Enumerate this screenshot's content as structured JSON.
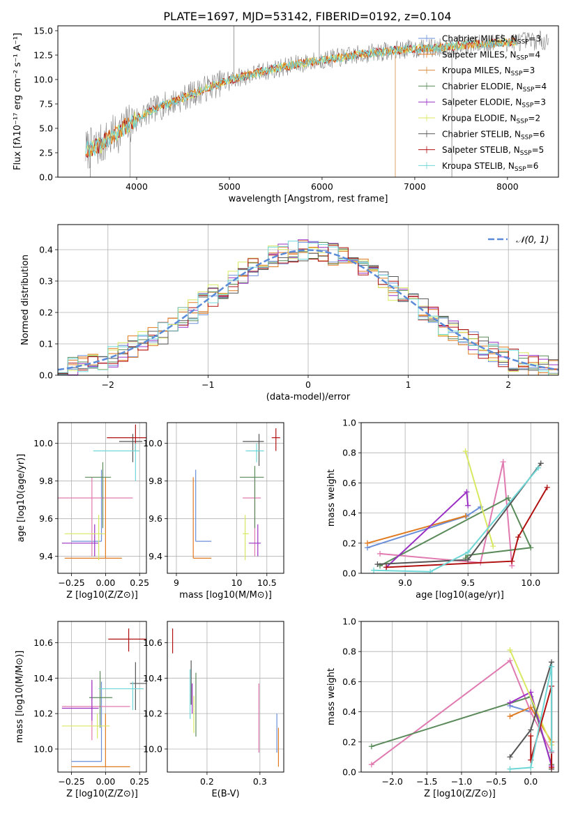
{
  "figure_title": "PLATE=1697, MJD=53142, FIBERID=0192, z=0.104",
  "colors": {
    "chabrier_miles": "#6a8fd8",
    "salpeter_miles": "#e07a1f",
    "kroupa_miles": "#d4893a",
    "chabrier_elodie": "#5a8a5a",
    "salpeter_elodie": "#9b30c4",
    "kroupa_elodie": "#d8e860",
    "chabrier_stelib": "#555555",
    "salpeter_stelib": "#b01010",
    "kroupa_stelib": "#6fd6d6",
    "pink": "#e07ab0",
    "normal_curve": "#5a8ad8"
  },
  "chart_data": [
    {
      "type": "line",
      "title": "PLATE=1697, MJD=53142, FIBERID=0192, z=0.104",
      "xlabel": "wavelength [Angstrom, rest frame]",
      "ylabel": "Flux [fλ10⁻¹⁷ erg cm⁻² s⁻¹ A⁻¹]",
      "xlim": [
        3150,
        8550
      ],
      "ylim": [
        0,
        15.5
      ],
      "xticks": [
        4000,
        5000,
        6000,
        7000,
        8000
      ],
      "yticks": [
        0.0,
        2.5,
        5.0,
        7.5,
        10.0,
        12.5,
        15.0
      ],
      "grid": false,
      "legend": "upper-right",
      "continuum": {
        "x": [
          3450,
          3600,
          3800,
          4000,
          4200,
          4500,
          4800,
          5100,
          5400,
          5700,
          6000,
          6300,
          6600,
          6900,
          7200,
          7500,
          7800,
          8100,
          8400
        ],
        "y": [
          2.8,
          3.2,
          4.6,
          6.0,
          7.0,
          8.1,
          9.3,
          10.2,
          10.9,
          11.5,
          12.0,
          12.4,
          12.8,
          13.1,
          13.2,
          13.5,
          13.7,
          13.9,
          14.0
        ]
      },
      "series": [
        {
          "name": "Chabrier MILES, N_SSP=3"
        },
        {
          "name": "Salpeter MILES, N_SSP=4"
        },
        {
          "name": "Kroupa MILES, N_SSP=3"
        },
        {
          "name": "Chabrier ELODIE, N_SSP=4"
        },
        {
          "name": "Salpeter ELODIE, N_SSP=3"
        },
        {
          "name": "Kroupa ELODIE, N_SSP=2"
        },
        {
          "name": "Chabrier STELIB, N_SSP=6"
        },
        {
          "name": "Salpeter STELIB, N_SSP=5"
        },
        {
          "name": "Kroupa STELIB, N_SSP=6"
        }
      ]
    },
    {
      "type": "histogram",
      "xlabel": "(data-model)/error",
      "ylabel": "Normed distribution",
      "xlim": [
        -2.5,
        2.5
      ],
      "ylim": [
        0,
        0.48
      ],
      "xticks": [
        -2,
        -1,
        0,
        1,
        2
      ],
      "yticks": [
        0.0,
        0.1,
        0.2,
        0.3,
        0.4
      ],
      "grid": true,
      "legend": "upper-right",
      "bin_width": 0.1,
      "reference": {
        "name": "𝒩(0, 1)",
        "mean": 0,
        "sigma": 1
      }
    },
    {
      "type": "errorbar",
      "xlabel": "Z [log10(Z/Z⊙)]",
      "ylabel": "age  [log10(age/yr)]",
      "xlim": [
        -0.35,
        0.3
      ],
      "ylim": [
        9.31,
        10.11
      ],
      "xticks": [
        -0.25,
        0.0,
        0.25
      ],
      "yticks": [
        9.4,
        9.6,
        9.8,
        10.0
      ],
      "grid": true,
      "points": [
        {
          "c": "chabrier_miles",
          "x": -0.03,
          "y": 9.48,
          "xl": -0.25,
          "xh": -0.03,
          "yl": 9.48,
          "yh": 9.86
        },
        {
          "c": "salpeter_miles",
          "x": 0.0,
          "y": 9.39,
          "xl": -0.3,
          "xh": 0.12,
          "yl": 9.39,
          "yh": 9.82
        },
        {
          "c": "pink",
          "x": -0.1,
          "y": 9.71,
          "xl": -0.4,
          "xh": 0.2,
          "yl": 9.4,
          "yh": 9.82
        },
        {
          "c": "chabrier_elodie",
          "x": -0.02,
          "y": 9.82,
          "xl": -0.15,
          "xh": 0.04,
          "yl": 9.55,
          "yh": 9.9
        },
        {
          "c": "salpeter_elodie",
          "x": -0.08,
          "y": 9.47,
          "xl": -0.32,
          "xh": -0.05,
          "yl": 9.4,
          "yh": 9.57
        },
        {
          "c": "kroupa_elodie",
          "x": -0.05,
          "y": 9.52,
          "xl": -0.3,
          "xh": 0.0,
          "yl": 9.38,
          "yh": 9.62
        },
        {
          "c": "chabrier_stelib",
          "x": 0.2,
          "y": 10.01,
          "xl": 0.1,
          "xh": 0.27,
          "yl": 9.9,
          "yh": 10.05
        },
        {
          "c": "salpeter_stelib",
          "x": 0.22,
          "y": 10.03,
          "xl": 0.01,
          "xh": 0.31,
          "yl": 9.96,
          "yh": 10.1
        },
        {
          "c": "kroupa_stelib",
          "x": 0.22,
          "y": 9.96,
          "xl": -0.09,
          "xh": 0.25,
          "yl": 9.8,
          "yh": 10.0
        }
      ]
    },
    {
      "type": "errorbar",
      "xlabel": "mass [log10(M/M⊙)]",
      "ylabel": "",
      "xlim": [
        8.85,
        10.78
      ],
      "ylim": [
        9.31,
        10.11
      ],
      "xticks": [
        9.0,
        10.0,
        10.5
      ],
      "yticks": [
        9.4,
        9.6,
        9.8,
        10.0
      ],
      "xticklabels": [
        "9",
        "10",
        "10.5"
      ],
      "grid": true,
      "points": [
        {
          "c": "chabrier_miles",
          "x": 9.32,
          "y": 9.48,
          "xl": 9.32,
          "xh": 9.58,
          "yl": 9.48,
          "yh": 9.86
        },
        {
          "c": "salpeter_miles",
          "x": 9.28,
          "y": 9.39,
          "xl": 9.28,
          "xh": 9.58,
          "yl": 9.39,
          "yh": 9.82
        },
        {
          "c": "pink",
          "x": 10.3,
          "y": 9.71,
          "xl": 10.1,
          "xh": 10.4,
          "yl": 9.4,
          "yh": 9.82
        },
        {
          "c": "chabrier_elodie",
          "x": 10.3,
          "y": 9.82,
          "xl": 10.05,
          "xh": 10.45,
          "yl": 9.55,
          "yh": 9.88
        },
        {
          "c": "salpeter_elodie",
          "x": 10.35,
          "y": 9.47,
          "xl": 10.2,
          "xh": 10.4,
          "yl": 9.4,
          "yh": 9.57
        },
        {
          "c": "kroupa_elodie",
          "x": 10.14,
          "y": 9.52,
          "xl": 10.1,
          "xh": 10.2,
          "yl": 9.38,
          "yh": 9.62
        },
        {
          "c": "chabrier_stelib",
          "x": 10.37,
          "y": 10.01,
          "xl": 10.1,
          "xh": 10.45,
          "yl": 9.88,
          "yh": 10.05
        },
        {
          "c": "salpeter_stelib",
          "x": 10.65,
          "y": 10.03,
          "xl": 10.58,
          "xh": 10.72,
          "yl": 9.96,
          "yh": 10.08
        },
        {
          "c": "kroupa_stelib",
          "x": 10.33,
          "y": 9.96,
          "xl": 10.15,
          "xh": 10.45,
          "yl": 9.9,
          "yh": 10.0
        }
      ]
    },
    {
      "type": "line",
      "xlabel": "age  [log10(age/yr)]",
      "ylabel": "mass weight",
      "xlim": [
        8.65,
        10.22
      ],
      "ylim": [
        0,
        1
      ],
      "xticks": [
        9.0,
        9.5,
        10.0
      ],
      "yticks": [
        0.0,
        0.2,
        0.4,
        0.6,
        0.8,
        1.0
      ],
      "grid": true,
      "series": [
        {
          "c": "chabrier_miles",
          "x": [
            8.7,
            9.49,
            9.6
          ],
          "y": [
            0.17,
            0.38,
            0.44
          ]
        },
        {
          "c": "salpeter_miles",
          "x": [
            8.7,
            9.48
          ],
          "y": [
            0.2,
            0.38
          ]
        },
        {
          "c": "pink",
          "x": [
            8.8,
            9.6,
            9.78,
            9.85
          ],
          "y": [
            0.13,
            0.07,
            0.74,
            0.05
          ]
        },
        {
          "c": "chabrier_elodie",
          "x": [
            8.8,
            9.82,
            10.0,
            9.5,
            9.48
          ],
          "y": [
            0.05,
            0.5,
            0.17,
            0.12,
            0.1
          ]
        },
        {
          "c": "salpeter_elodie",
          "x": [
            8.85,
            9.49,
            9.5
          ],
          "y": [
            0.04,
            0.54,
            0.45
          ]
        },
        {
          "c": "kroupa_elodie",
          "x": [
            9.48,
            9.7
          ],
          "y": [
            0.81,
            0.18
          ]
        },
        {
          "c": "chabrier_stelib",
          "x": [
            8.78,
            9.5,
            10.08
          ],
          "y": [
            0.06,
            0.09,
            0.73
          ]
        },
        {
          "c": "salpeter_stelib",
          "x": [
            8.85,
            9.85,
            9.9,
            10.13
          ],
          "y": [
            0.04,
            0.08,
            0.24,
            0.57
          ]
        },
        {
          "c": "kroupa_stelib",
          "x": [
            8.75,
            9.2,
            9.5,
            10.06
          ],
          "y": [
            0.02,
            0.01,
            0.14,
            0.7
          ]
        }
      ]
    },
    {
      "type": "errorbar",
      "xlabel": "Z [log10(Z/Z⊙)]",
      "ylabel": "mass [log10(M/M⊙)]",
      "xlim": [
        -0.35,
        0.3
      ],
      "ylim": [
        9.87,
        10.72
      ],
      "xticks": [
        -0.25,
        0.0,
        0.25
      ],
      "yticks": [
        10.0,
        10.2,
        10.4,
        10.6
      ],
      "grid": true,
      "points": [
        {
          "c": "chabrier_miles",
          "x": -0.03,
          "y": 9.93,
          "xl": -0.25,
          "xh": -0.03,
          "yl": 9.93,
          "yh": 10.38
        },
        {
          "c": "salpeter_miles",
          "x": 0.0,
          "y": 9.9,
          "xl": -0.25,
          "xh": 0.18,
          "yl": 9.9,
          "yh": 10.2
        },
        {
          "c": "pink",
          "x": -0.1,
          "y": 10.24,
          "xl": -0.32,
          "xh": 0.18,
          "yl": 10.05,
          "yh": 10.38
        },
        {
          "c": "chabrier_elodie",
          "x": -0.04,
          "y": 10.29,
          "xl": -0.12,
          "xh": 0.05,
          "yl": 10.12,
          "yh": 10.44
        },
        {
          "c": "salpeter_elodie",
          "x": -0.1,
          "y": 10.23,
          "xl": -0.32,
          "xh": -0.05,
          "yl": 10.16,
          "yh": 10.39
        },
        {
          "c": "kroupa_elodie",
          "x": -0.06,
          "y": 10.13,
          "xl": -0.32,
          "xh": 0.03,
          "yl": 10.06,
          "yh": 10.2
        },
        {
          "c": "chabrier_stelib",
          "x": 0.22,
          "y": 10.37,
          "xl": 0.18,
          "xh": 0.32,
          "yl": 10.22,
          "yh": 10.49
        },
        {
          "c": "salpeter_stelib",
          "x": 0.17,
          "y": 10.62,
          "xl": 0.02,
          "xh": 0.4,
          "yl": 10.55,
          "yh": 10.68
        },
        {
          "c": "kroupa_stelib",
          "x": 0.2,
          "y": 10.34,
          "xl": -0.05,
          "xh": 0.28,
          "yl": 10.22,
          "yh": 10.38
        }
      ]
    },
    {
      "type": "errorbar",
      "xlabel": "E(B-V)",
      "ylabel": "",
      "xlim": [
        0.125,
        0.345
      ],
      "ylim": [
        9.87,
        10.72
      ],
      "xticks": [
        0.2,
        0.3
      ],
      "yticks": [
        10.0,
        10.2,
        10.4,
        10.6
      ],
      "grid": true,
      "points": [
        {
          "c": "chabrier_miles",
          "x": 0.332,
          "y": 10.1,
          "yl": 9.98,
          "yh": 10.2
        },
        {
          "c": "salpeter_miles",
          "x": 0.335,
          "y": 10.0,
          "yl": 9.9,
          "yh": 10.12
        },
        {
          "c": "pink",
          "x": 0.298,
          "y": 10.2,
          "yl": 9.98,
          "yh": 10.37
        },
        {
          "c": "chabrier_elodie",
          "x": 0.179,
          "y": 10.3,
          "yl": 10.07,
          "yh": 10.43
        },
        {
          "c": "salpeter_elodie",
          "x": 0.172,
          "y": 10.3,
          "yl": 10.2,
          "yh": 10.37
        },
        {
          "c": "kroupa_elodie",
          "x": 0.175,
          "y": 10.2,
          "yl": 10.09,
          "yh": 10.3
        },
        {
          "c": "chabrier_stelib",
          "x": 0.17,
          "y": 10.38,
          "yl": 10.25,
          "yh": 10.5
        },
        {
          "c": "salpeter_stelib",
          "x": 0.135,
          "y": 10.62,
          "yl": 10.54,
          "yh": 10.68
        },
        {
          "c": "kroupa_stelib",
          "x": 0.168,
          "y": 10.3,
          "yl": 10.17,
          "yh": 10.45
        }
      ]
    },
    {
      "type": "line",
      "xlabel": "Z [log10(Z/Z⊙)]",
      "ylabel": "mass weight",
      "xlim": [
        -2.45,
        0.4
      ],
      "ylim": [
        0,
        1
      ],
      "xticks": [
        -2.0,
        -1.5,
        -1.0,
        -0.5,
        0.0
      ],
      "yticks": [
        0.0,
        0.2,
        0.4,
        0.6,
        0.8,
        1.0
      ],
      "grid": true,
      "series": [
        {
          "c": "chabrier_miles",
          "x": [
            -0.3,
            0.0
          ],
          "y": [
            0.44,
            0.4
          ]
        },
        {
          "c": "salpeter_miles",
          "x": [
            -0.3,
            0.0,
            0.3
          ],
          "y": [
            0.37,
            0.43,
            0.2
          ]
        },
        {
          "c": "pink",
          "x": [
            -2.3,
            -0.3,
            0.0,
            0.3
          ],
          "y": [
            0.05,
            0.74,
            0.4,
            0.13
          ]
        },
        {
          "c": "chabrier_elodie",
          "x": [
            -2.3,
            0.0,
            0.3
          ],
          "y": [
            0.17,
            0.5,
            0.05
          ]
        },
        {
          "c": "salpeter_elodie",
          "x": [
            -0.3,
            0.0,
            0.3
          ],
          "y": [
            0.46,
            0.53,
            0.04
          ]
        },
        {
          "c": "kroupa_elodie",
          "x": [
            -0.3,
            0.3
          ],
          "y": [
            0.81,
            0.18
          ]
        },
        {
          "c": "chabrier_stelib",
          "x": [
            -0.3,
            0.0,
            0.3,
            0.3
          ],
          "y": [
            0.1,
            0.28,
            0.73,
            0.02
          ]
        },
        {
          "c": "salpeter_stelib",
          "x": [
            0.0,
            0.0,
            0.3,
            0.3
          ],
          "y": [
            0.24,
            0.08,
            0.57,
            0.03
          ]
        },
        {
          "c": "kroupa_stelib",
          "x": [
            -0.3,
            0.0,
            0.3,
            0.3
          ],
          "y": [
            0.02,
            0.03,
            0.7,
            0.14
          ]
        }
      ]
    }
  ]
}
